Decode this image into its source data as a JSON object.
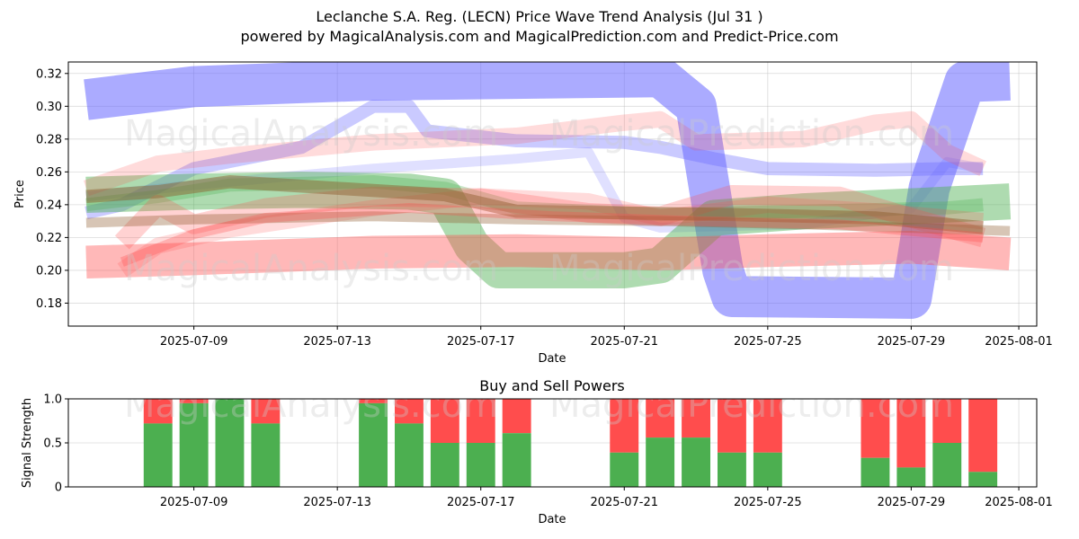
{
  "title_line1": "Leclanche S.A. Reg. (LECN) Price Wave Trend Analysis (Jul 31 )",
  "title_line2": "powered by MagicalAnalysis.com and MagicalPrediction.com and Predict-Price.com",
  "watermarks": [
    "MagicalAnalysis.com",
    "MagicalPrediction.com"
  ],
  "colors": {
    "blue": "#6666ff",
    "green": "#4caf50",
    "red": "#ff4d4d",
    "brown": "#8b5a2b",
    "buy": "#4caf50",
    "sell": "#ff4d4d"
  },
  "chart_data": [
    {
      "type": "line",
      "title": "",
      "xlabel": "Date",
      "ylabel": "Price",
      "xlim": [
        "2025-07-05T12:00",
        "2025-08-01T12:00"
      ],
      "ylim": [
        0.166,
        0.327
      ],
      "x_ticks": [
        "2025-07-09",
        "2025-07-13",
        "2025-07-17",
        "2025-07-21",
        "2025-07-25",
        "2025-07-29",
        "2025-08-01"
      ],
      "y_ticks": [
        0.18,
        0.2,
        0.22,
        0.24,
        0.26,
        0.28,
        0.3,
        0.32
      ],
      "grid": true,
      "series": [
        {
          "name": "blue-wave-1",
          "color": "blue",
          "width": 0.025,
          "opacity": 0.55,
          "points": [
            [
              "2025-07-06",
              0.304
            ],
            [
              "2025-07-09",
              0.312
            ],
            [
              "2025-07-14",
              0.316
            ],
            [
              "2025-07-22",
              0.318
            ],
            [
              "2025-07-23",
              0.3
            ],
            [
              "2025-07-23T18:00",
              0.2
            ],
            [
              "2025-07-24",
              0.184
            ],
            [
              "2025-07-29",
              0.183
            ],
            [
              "2025-07-29T12:00",
              0.25
            ],
            [
              "2025-07-30T12:00",
              0.315
            ],
            [
              "2025-07-31T18:00",
              0.316
            ]
          ]
        },
        {
          "name": "blue-wave-2",
          "color": "blue",
          "width": 0.008,
          "opacity": 0.35,
          "points": [
            [
              "2025-07-06",
              0.235
            ],
            [
              "2025-07-07",
              0.24
            ],
            [
              "2025-07-09",
              0.262
            ],
            [
              "2025-07-12",
              0.275
            ],
            [
              "2025-07-14",
              0.3
            ],
            [
              "2025-07-15",
              0.3
            ],
            [
              "2025-07-15T12:00",
              0.285
            ],
            [
              "2025-07-18",
              0.279
            ],
            [
              "2025-07-21",
              0.278
            ],
            [
              "2025-07-22",
              0.275
            ],
            [
              "2025-07-23T12:00",
              0.268
            ],
            [
              "2025-07-25",
              0.262
            ],
            [
              "2025-07-28",
              0.261
            ],
            [
              "2025-07-30",
              0.262
            ],
            [
              "2025-07-31",
              0.262
            ]
          ]
        },
        {
          "name": "blue-wave-3",
          "color": "blue",
          "width": 0.006,
          "opacity": 0.2,
          "points": [
            [
              "2025-07-06",
              0.245
            ],
            [
              "2025-07-09",
              0.252
            ],
            [
              "2025-07-14",
              0.262
            ],
            [
              "2025-07-18",
              0.268
            ],
            [
              "2025-07-20",
              0.272
            ],
            [
              "2025-07-21",
              0.232
            ],
            [
              "2025-07-22",
              0.226
            ],
            [
              "2025-07-26",
              0.228
            ],
            [
              "2025-07-29",
              0.238
            ],
            [
              "2025-07-30",
              0.266
            ],
            [
              "2025-07-31",
              0.262
            ]
          ]
        },
        {
          "name": "green-wave-1",
          "color": "green",
          "width": 0.022,
          "opacity": 0.45,
          "points": [
            [
              "2025-07-06",
              0.246
            ],
            [
              "2025-07-09",
              0.248
            ],
            [
              "2025-07-12",
              0.249
            ],
            [
              "2025-07-15",
              0.248
            ],
            [
              "2025-07-16",
              0.245
            ],
            [
              "2025-07-16T18:00",
              0.215
            ],
            [
              "2025-07-17T12:00",
              0.2
            ],
            [
              "2025-07-21",
              0.2
            ],
            [
              "2025-07-22",
              0.203
            ],
            [
              "2025-07-23T12:00",
              0.232
            ],
            [
              "2025-07-26",
              0.236
            ],
            [
              "2025-07-29",
              0.239
            ],
            [
              "2025-07-31T18:00",
              0.242
            ]
          ]
        },
        {
          "name": "green-wave-2",
          "color": "green",
          "width": 0.008,
          "opacity": 0.3,
          "points": [
            [
              "2025-07-06",
              0.24
            ],
            [
              "2025-07-08",
              0.245
            ],
            [
              "2025-07-10",
              0.252
            ],
            [
              "2025-07-14",
              0.254
            ],
            [
              "2025-07-16",
              0.25
            ],
            [
              "2025-07-18",
              0.238
            ],
            [
              "2025-07-22",
              0.234
            ],
            [
              "2025-07-26",
              0.236
            ],
            [
              "2025-07-30",
              0.238
            ],
            [
              "2025-07-31",
              0.24
            ]
          ]
        },
        {
          "name": "red-wave-1",
          "color": "red",
          "width": 0.02,
          "opacity": 0.4,
          "points": [
            [
              "2025-07-06",
              0.205
            ],
            [
              "2025-07-09",
              0.207
            ],
            [
              "2025-07-14",
              0.211
            ],
            [
              "2025-07-18",
              0.212
            ],
            [
              "2025-07-22",
              0.21
            ],
            [
              "2025-07-25",
              0.212
            ],
            [
              "2025-07-29",
              0.214
            ],
            [
              "2025-07-31T18:00",
              0.21
            ]
          ]
        },
        {
          "name": "red-wave-2",
          "color": "red",
          "width": 0.012,
          "opacity": 0.25,
          "points": [
            [
              "2025-07-07",
              0.217
            ],
            [
              "2025-07-08",
              0.24
            ],
            [
              "2025-07-09",
              0.228
            ],
            [
              "2025-07-11",
              0.238
            ],
            [
              "2025-07-14",
              0.245
            ],
            [
              "2025-07-17",
              0.244
            ],
            [
              "2025-07-20",
              0.235
            ],
            [
              "2025-07-22",
              0.233
            ],
            [
              "2025-07-24",
              0.246
            ],
            [
              "2025-07-27",
              0.245
            ],
            [
              "2025-07-29",
              0.232
            ],
            [
              "2025-07-31",
              0.22
            ]
          ]
        },
        {
          "name": "red-wave-3",
          "color": "red",
          "width": 0.01,
          "opacity": 0.2,
          "points": [
            [
              "2025-07-06",
              0.25
            ],
            [
              "2025-07-08",
              0.265
            ],
            [
              "2025-07-10",
              0.27
            ],
            [
              "2025-07-14",
              0.278
            ],
            [
              "2025-07-18",
              0.282
            ],
            [
              "2025-07-21",
              0.29
            ],
            [
              "2025-07-22",
              0.292
            ],
            [
              "2025-07-23",
              0.278
            ],
            [
              "2025-07-26",
              0.28
            ],
            [
              "2025-07-28",
              0.29
            ],
            [
              "2025-07-29",
              0.292
            ],
            [
              "2025-07-30",
              0.272
            ],
            [
              "2025-07-31",
              0.262
            ]
          ]
        },
        {
          "name": "red-wave-4",
          "color": "red",
          "width": 0.01,
          "opacity": 0.2,
          "points": [
            [
              "2025-07-07",
              0.2
            ],
            [
              "2025-07-08",
              0.215
            ],
            [
              "2025-07-10",
              0.225
            ],
            [
              "2025-07-14",
              0.238
            ],
            [
              "2025-07-17",
              0.245
            ],
            [
              "2025-07-20",
              0.242
            ],
            [
              "2025-07-22",
              0.232
            ],
            [
              "2025-07-25",
              0.24
            ],
            [
              "2025-07-28",
              0.236
            ],
            [
              "2025-07-31",
              0.23
            ]
          ]
        },
        {
          "name": "brown-wave-1",
          "color": "brown",
          "width": 0.008,
          "opacity": 0.45,
          "points": [
            [
              "2025-07-06",
              0.245
            ],
            [
              "2025-07-08",
              0.248
            ],
            [
              "2025-07-10",
              0.254
            ],
            [
              "2025-07-13",
              0.25
            ],
            [
              "2025-07-16",
              0.246
            ],
            [
              "2025-07-18",
              0.236
            ],
            [
              "2025-07-21",
              0.235
            ],
            [
              "2025-07-24",
              0.234
            ],
            [
              "2025-07-28",
              0.232
            ],
            [
              "2025-07-31",
              0.226
            ]
          ]
        },
        {
          "name": "brown-wave-2",
          "color": "brown",
          "width": 0.006,
          "opacity": 0.35,
          "points": [
            [
              "2025-07-06",
              0.229
            ],
            [
              "2025-07-09",
              0.231
            ],
            [
              "2025-07-14",
              0.233
            ],
            [
              "2025-07-18",
              0.231
            ],
            [
              "2025-07-22",
              0.23
            ],
            [
              "2025-07-26",
              0.228
            ],
            [
              "2025-07-31T18:00",
              0.224
            ]
          ]
        },
        {
          "name": "red-wave-5",
          "color": "red",
          "width": 0.006,
          "opacity": 0.3,
          "points": [
            [
              "2025-07-07",
              0.205
            ],
            [
              "2025-07-09",
              0.222
            ],
            [
              "2025-07-11",
              0.232
            ],
            [
              "2025-07-15",
              0.238
            ],
            [
              "2025-07-19",
              0.233
            ],
            [
              "2025-07-23",
              0.23
            ],
            [
              "2025-07-27",
              0.228
            ],
            [
              "2025-07-31",
              0.22
            ]
          ]
        }
      ]
    },
    {
      "type": "bar",
      "title": "Buy and Sell Powers",
      "xlabel": "Date",
      "ylabel": "Signal Strength",
      "xlim": [
        "2025-07-05T12:00",
        "2025-08-01T12:00"
      ],
      "ylim": [
        0,
        1.0
      ],
      "x_ticks": [
        "2025-07-09",
        "2025-07-13",
        "2025-07-17",
        "2025-07-21",
        "2025-07-25",
        "2025-07-29",
        "2025-08-01"
      ],
      "y_ticks": [
        0.0,
        0.5,
        1.0
      ],
      "y_tick_labels": [
        "0",
        "0.5",
        "1.0"
      ],
      "grid": true,
      "series": [
        {
          "name": "Buy",
          "color": "buy"
        },
        {
          "name": "Sell",
          "color": "sell"
        }
      ],
      "categories": [
        "2025-07-08",
        "2025-07-09",
        "2025-07-10",
        "2025-07-11",
        "2025-07-14",
        "2025-07-15",
        "2025-07-16",
        "2025-07-17",
        "2025-07-18",
        "2025-07-21",
        "2025-07-22",
        "2025-07-23",
        "2025-07-24",
        "2025-07-25",
        "2025-07-28",
        "2025-07-29",
        "2025-07-30",
        "2025-07-31"
      ],
      "buy": [
        0.72,
        0.95,
        1.0,
        0.72,
        0.95,
        0.72,
        0.5,
        0.5,
        0.61,
        0.39,
        0.56,
        0.56,
        0.39,
        0.39,
        0.33,
        0.22,
        0.5,
        0.17
      ]
    }
  ]
}
